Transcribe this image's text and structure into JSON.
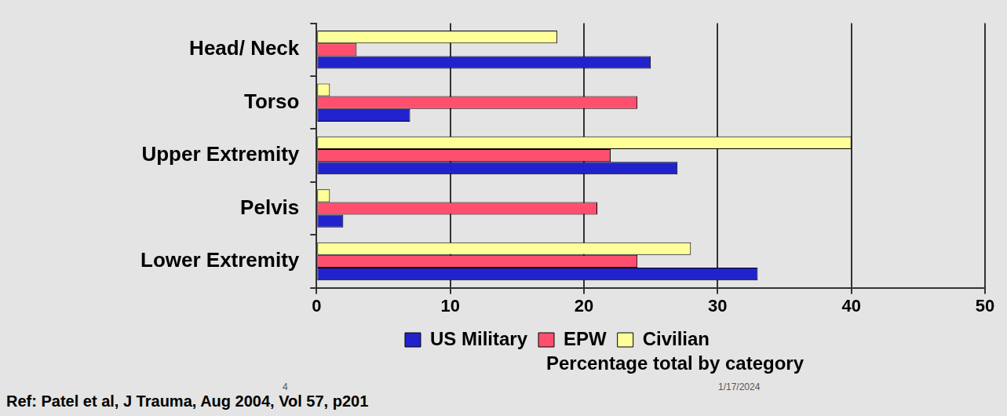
{
  "chart_data": {
    "type": "bar",
    "orientation": "horizontal",
    "categories": [
      "Head/ Neck",
      "Torso",
      "Upper Extremity",
      "Pelvis",
      "Lower Extremity"
    ],
    "series": [
      {
        "name": "US Military",
        "color": "#2222cc",
        "values": [
          25,
          7,
          27,
          2,
          33
        ]
      },
      {
        "name": "EPW",
        "color": "#ff4f6f",
        "values": [
          3,
          24,
          22,
          21,
          24
        ]
      },
      {
        "name": "Civilian",
        "color": "#ffff99",
        "values": [
          18,
          1,
          40,
          1,
          28
        ]
      }
    ],
    "xlabel": "Percentage total by category",
    "xlim": [
      0,
      50
    ],
    "xticks": [
      0,
      10,
      20,
      30,
      40,
      50
    ],
    "grid": true,
    "legend": "bottom",
    "annotations": [
      "Ref: Patel et al, J Trauma, Aug 2004, Vol 57, p201",
      "4",
      "1/17/2024"
    ]
  }
}
